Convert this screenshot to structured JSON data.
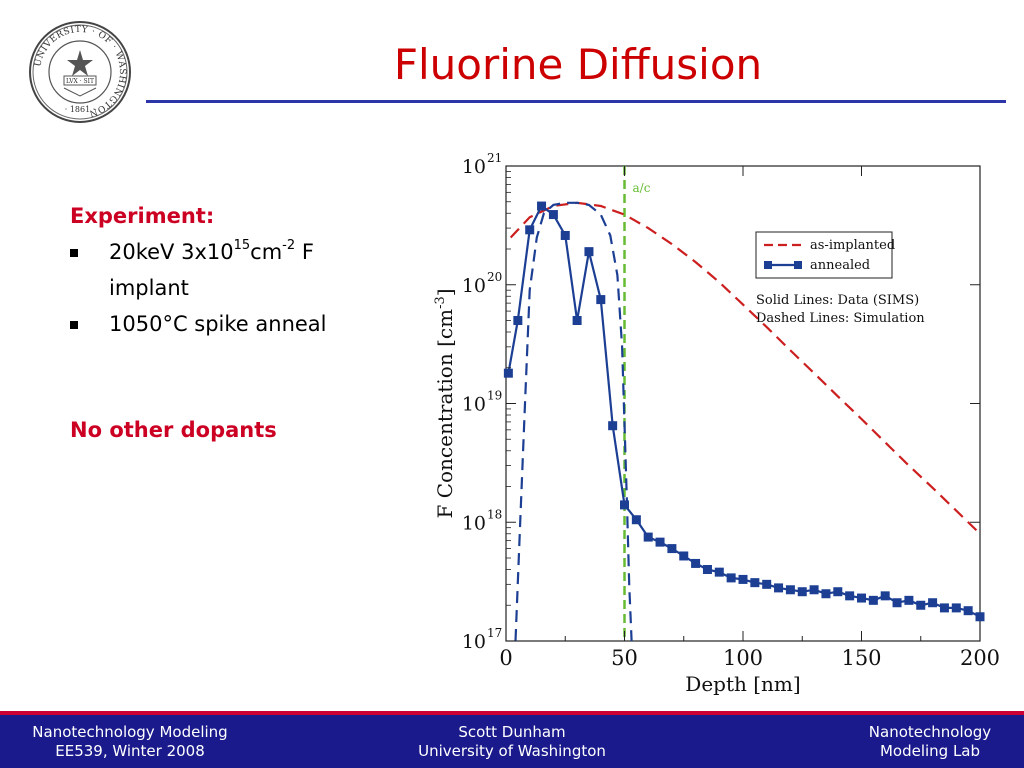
{
  "slide": {
    "title": "Fluorine Diffusion",
    "seal": {
      "ring_text": "UNIVERSITY · OF · WASHINGTON",
      "motto": "LVX · SIT",
      "year": "· 1861 ·"
    },
    "bullets": {
      "heading": "Experiment:",
      "item1_pre": "20keV 3x10",
      "item1_exp1": "15",
      "item1_mid": "cm",
      "item1_exp2": "-2",
      "item1_post": " F",
      "item1_line2": "implant",
      "item2": "1050°C spike anneal",
      "note": "No other dopants"
    },
    "footer": {
      "left_line1": "Nanotechnology Modeling",
      "left_line2": "EE539, Winter 2008",
      "mid_line1": "Scott Dunham",
      "mid_line2": "University of Washington",
      "right_line1": "Nanotechnology",
      "right_line2": "Modeling Lab"
    },
    "colors": {
      "title": "#cc0000",
      "accent_rule": "#2d36a8",
      "footer_bg": "#1a1a8c",
      "footer_stripe": "#cc0033",
      "annealed": "#1c3f94",
      "as_implanted": "#cc1f1f",
      "ac_line": "#66bb33"
    }
  },
  "chart_data": {
    "type": "line",
    "xlabel": "Depth [nm]",
    "ylabel": "F Concentration [cm",
    "ylabel_exp": "-3",
    "ylabel_close": "]",
    "xlim": [
      0,
      200
    ],
    "ylim": [
      1e+17,
      1e+21
    ],
    "yscale": "log",
    "x_ticks": [
      0,
      50,
      100,
      150,
      200
    ],
    "y_ticks": [
      {
        "base": "10",
        "exp": "17",
        "value": 1e+17
      },
      {
        "base": "10",
        "exp": "18",
        "value": 1e+18
      },
      {
        "base": "10",
        "exp": "19",
        "value": 1e+19
      },
      {
        "base": "10",
        "exp": "20",
        "value": 1e+20
      },
      {
        "base": "10",
        "exp": "21",
        "value": 1e+21
      }
    ],
    "grid": false,
    "legend_position": "top-right",
    "legend": [
      {
        "label": "as-implanted",
        "style": "dashed",
        "color": "#cc1f1f"
      },
      {
        "label": "annealed",
        "style": "solid-square",
        "color": "#1c3f94"
      }
    ],
    "annotations": {
      "line1": "Solid Lines: Data (SIMS)",
      "line2": "Dashed Lines: Simulation",
      "ac_label": "a/c",
      "ac_x": 50
    },
    "series": [
      {
        "name": "as-implanted",
        "style": "dashed",
        "x": [
          2,
          10,
          20,
          30,
          40,
          50,
          60,
          70,
          80,
          90,
          100,
          110,
          120,
          130,
          140,
          150,
          160,
          170,
          180,
          190,
          200
        ],
        "y": [
          2.5e+20,
          3.7e+20,
          4.6e+20,
          4.9e+20,
          4.6e+20,
          3.9e+20,
          3e+20,
          2.2e+20,
          1.55e+20,
          1.05e+20,
          6.8e+19,
          4.4e+19,
          2.8e+19,
          1.8e+19,
          1.15e+19,
          7.4e+18,
          4.7e+18,
          3e+18,
          1.95e+18,
          1.25e+18,
          8e+17
        ]
      },
      {
        "name": "annealed (simulation)",
        "style": "dashed",
        "x": [
          4,
          6,
          8,
          10,
          13,
          16,
          20,
          25,
          30,
          35,
          40,
          44,
          47,
          49,
          51,
          52,
          53
        ],
        "y": [
          1e+17,
          1e+18,
          1e+19,
          9e+19,
          2.5e+20,
          4e+20,
          4.7e+20,
          4.9e+20,
          4.9e+20,
          4.7e+20,
          3.9e+20,
          2.6e+20,
          1.2e+20,
          3e+19,
          1.5e+18,
          3e+17,
          1e+17
        ]
      },
      {
        "name": "annealed",
        "style": "solid-square",
        "x": [
          1,
          5,
          10,
          15,
          20,
          25,
          30,
          35,
          40,
          45,
          50,
          55,
          60,
          65,
          70,
          75,
          80,
          85,
          90,
          95,
          100,
          105,
          110,
          115,
          120,
          125,
          130,
          135,
          140,
          145,
          150,
          155,
          160,
          165,
          170,
          175,
          180,
          185,
          190,
          195,
          200
        ],
        "y": [
          1.8e+19,
          5e+19,
          2.9e+20,
          4.6e+20,
          3.9e+20,
          2.6e+20,
          5e+19,
          1.9e+20,
          7.5e+19,
          6.5e+18,
          1.4e+18,
          1.05e+18,
          7.5e+17,
          6.8e+17,
          6e+17,
          5.2e+17,
          4.5e+17,
          4e+17,
          3.8e+17,
          3.4e+17,
          3.3e+17,
          3.1e+17,
          3e+17,
          2.8e+17,
          2.7e+17,
          2.6e+17,
          2.7e+17,
          2.5e+17,
          2.6e+17,
          2.4e+17,
          2.3e+17,
          2.2e+17,
          2.4e+17,
          2.1e+17,
          2.2e+17,
          2e+17,
          2.1e+17,
          1.9e+17,
          1.9e+17,
          1.8e+17,
          1.6e+17
        ]
      }
    ]
  }
}
